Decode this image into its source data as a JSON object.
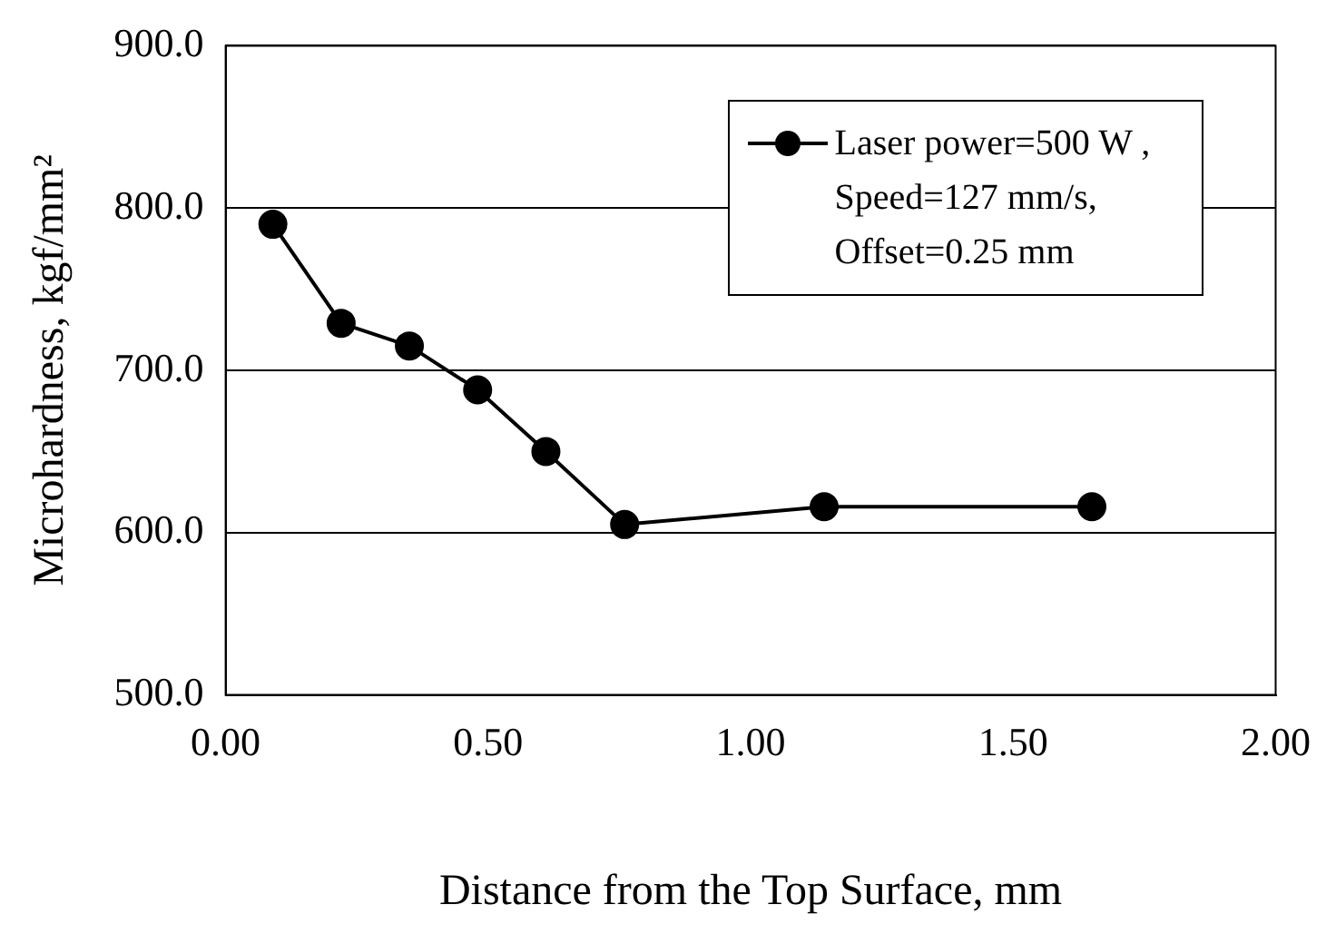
{
  "chart_data": {
    "type": "line",
    "xlabel": "Distance from the Top Surface, mm",
    "ylabel": "Microhardness, kgf/mm²",
    "x": [
      0.09,
      0.22,
      0.35,
      0.48,
      0.61,
      0.76,
      1.14,
      1.65
    ],
    "series": [
      {
        "name": "Laser power=500 W , Speed=127 mm/s, Offset=0.25 mm",
        "color": "#000000",
        "values": [
          790,
          729,
          715,
          688,
          650,
          605,
          616,
          616
        ]
      }
    ],
    "xlim": [
      0,
      2
    ],
    "xticks": [
      {
        "value": 0,
        "label": "0.00"
      },
      {
        "value": 0.5,
        "label": "0.50"
      },
      {
        "value": 1,
        "label": "1.00"
      },
      {
        "value": 1.5,
        "label": "1.50"
      },
      {
        "value": 2,
        "label": "2.00"
      }
    ],
    "ylim": [
      500,
      900
    ],
    "yticks": [
      {
        "value": 500,
        "label": "500.0"
      },
      {
        "value": 600,
        "label": "600.0"
      },
      {
        "value": 700,
        "label": "700.0"
      },
      {
        "value": 800,
        "label": "800.0"
      },
      {
        "value": 900,
        "label": "900.0"
      }
    ],
    "grid": "y",
    "legend": "top right",
    "marker": "circle",
    "line_style": "solid"
  }
}
